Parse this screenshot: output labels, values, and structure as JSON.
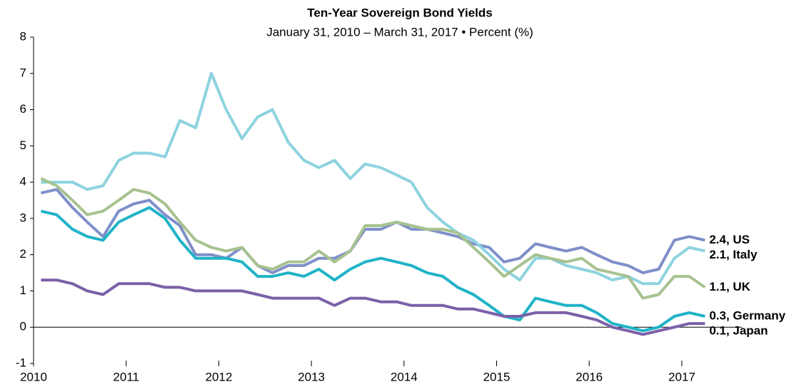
{
  "chart_data": {
    "type": "line",
    "title": "Ten-Year Sovereign Bond Yields",
    "subtitle": "January 31, 2010 – March 31, 2017 • Percent (%)",
    "x": [
      2010.08,
      2010.25,
      2010.42,
      2010.58,
      2010.75,
      2010.92,
      2011.08,
      2011.25,
      2011.42,
      2011.58,
      2011.75,
      2011.92,
      2012.08,
      2012.25,
      2012.42,
      2012.58,
      2012.75,
      2012.92,
      2013.08,
      2013.25,
      2013.42,
      2013.58,
      2013.75,
      2013.92,
      2014.08,
      2014.25,
      2014.42,
      2014.58,
      2014.75,
      2014.92,
      2015.08,
      2015.25,
      2015.42,
      2015.58,
      2015.75,
      2015.92,
      2016.08,
      2016.25,
      2016.42,
      2016.58,
      2016.75,
      2016.92,
      2017.08,
      2017.25
    ],
    "series": [
      {
        "name": "2.4, US",
        "color": "#7f8fc9",
        "values": [
          3.7,
          3.8,
          3.3,
          2.9,
          2.5,
          3.2,
          3.4,
          3.5,
          3.1,
          2.8,
          2.0,
          2.0,
          1.9,
          2.2,
          1.7,
          1.5,
          1.7,
          1.7,
          1.9,
          1.9,
          2.1,
          2.7,
          2.7,
          2.9,
          2.7,
          2.7,
          2.6,
          2.5,
          2.3,
          2.2,
          1.8,
          1.9,
          2.3,
          2.2,
          2.1,
          2.2,
          2.0,
          1.8,
          1.7,
          1.5,
          1.6,
          2.4,
          2.5,
          2.4
        ]
      },
      {
        "name": "2.1, Italy",
        "color": "#8dd3df",
        "values": [
          4.0,
          4.0,
          4.0,
          3.8,
          3.9,
          4.6,
          4.8,
          4.8,
          4.7,
          5.7,
          5.5,
          7.0,
          6.0,
          5.2,
          5.8,
          6.0,
          5.1,
          4.6,
          4.4,
          4.6,
          4.1,
          4.5,
          4.4,
          4.2,
          4.0,
          3.3,
          2.9,
          2.6,
          2.4,
          2.0,
          1.6,
          1.3,
          1.9,
          1.9,
          1.7,
          1.6,
          1.5,
          1.3,
          1.4,
          1.2,
          1.2,
          1.9,
          2.2,
          2.1
        ]
      },
      {
        "name": "1.1, UK",
        "color": "#a7c28f",
        "values": [
          4.1,
          3.9,
          3.5,
          3.1,
          3.2,
          3.5,
          3.8,
          3.7,
          3.4,
          2.9,
          2.4,
          2.2,
          2.1,
          2.2,
          1.7,
          1.6,
          1.8,
          1.8,
          2.1,
          1.8,
          2.1,
          2.8,
          2.8,
          2.9,
          2.8,
          2.7,
          2.7,
          2.6,
          2.2,
          1.8,
          1.4,
          1.7,
          2.0,
          1.9,
          1.8,
          1.9,
          1.6,
          1.5,
          1.4,
          0.8,
          0.9,
          1.4,
          1.4,
          1.1
        ]
      },
      {
        "name": "0.3, Germany",
        "color": "#1fb3c7",
        "values": [
          3.2,
          3.1,
          2.7,
          2.5,
          2.4,
          2.9,
          3.1,
          3.3,
          3.0,
          2.4,
          1.9,
          1.9,
          1.9,
          1.8,
          1.4,
          1.4,
          1.5,
          1.4,
          1.6,
          1.3,
          1.6,
          1.8,
          1.9,
          1.8,
          1.7,
          1.5,
          1.4,
          1.1,
          0.9,
          0.6,
          0.3,
          0.2,
          0.8,
          0.7,
          0.6,
          0.6,
          0.4,
          0.1,
          0.0,
          -0.1,
          0.0,
          0.3,
          0.4,
          0.3
        ]
      },
      {
        "name": "0.1, Japan",
        "color": "#7b60a8",
        "values": [
          1.3,
          1.3,
          1.2,
          1.0,
          0.9,
          1.2,
          1.2,
          1.2,
          1.1,
          1.1,
          1.0,
          1.0,
          1.0,
          1.0,
          0.9,
          0.8,
          0.8,
          0.8,
          0.8,
          0.6,
          0.8,
          0.8,
          0.7,
          0.7,
          0.6,
          0.6,
          0.6,
          0.5,
          0.5,
          0.4,
          0.3,
          0.3,
          0.4,
          0.4,
          0.4,
          0.3,
          0.2,
          0.0,
          -0.1,
          -0.2,
          -0.1,
          0.0,
          0.1,
          0.1
        ]
      }
    ],
    "xlim": [
      2010,
      2017.65
    ],
    "xticks": [
      2010,
      2011,
      2012,
      2013,
      2014,
      2015,
      2016,
      2017
    ],
    "ylim": [
      -1,
      8
    ],
    "yticks": [
      -1,
      0,
      1,
      2,
      3,
      4,
      5,
      6,
      7,
      8
    ]
  }
}
